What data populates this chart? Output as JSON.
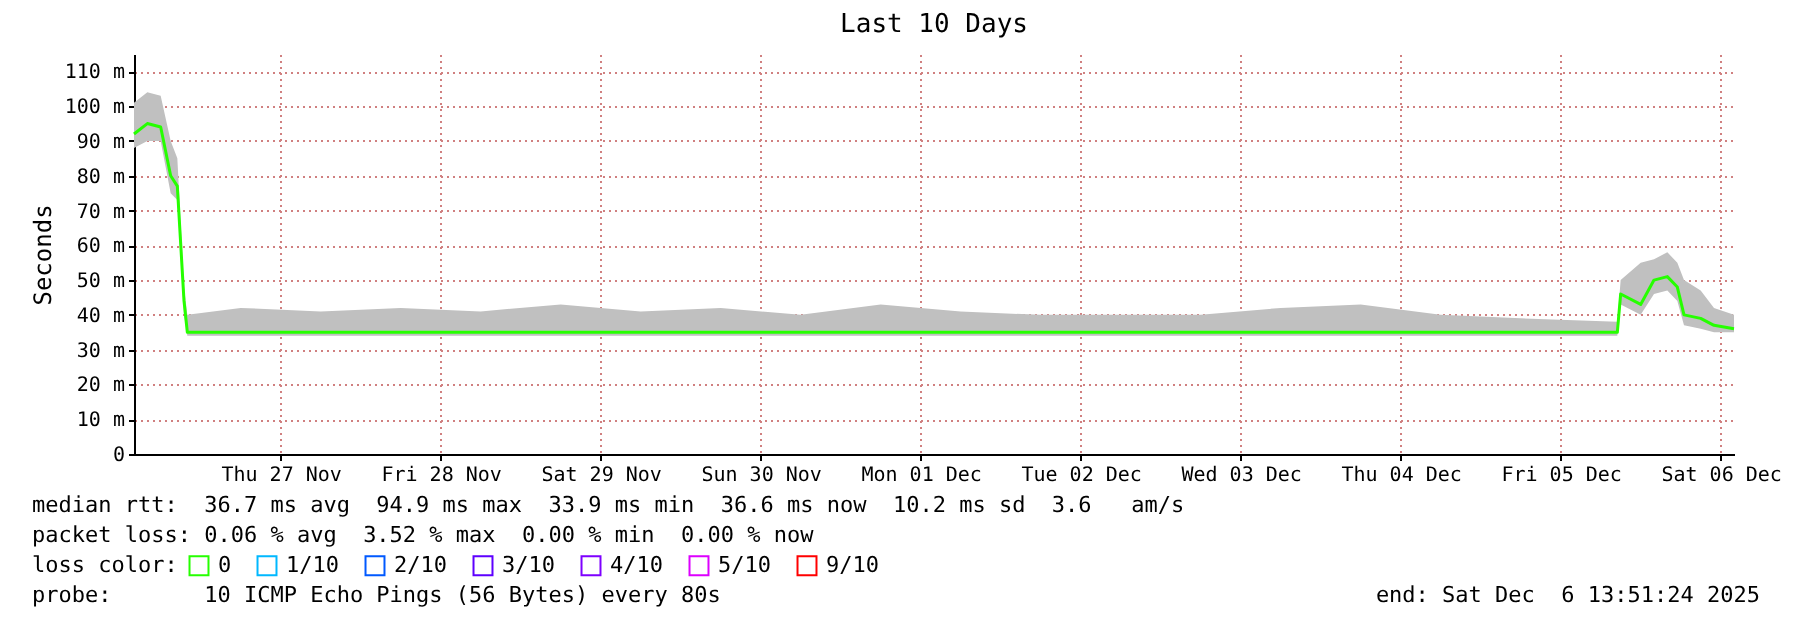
{
  "chart_data": {
    "type": "line",
    "title": "Last 10 Days",
    "ylabel": "Seconds",
    "legend_title": "loss color:",
    "x": [
      "2025-11-26T14:00",
      "2025-11-26T16:00",
      "2025-11-26T18:00",
      "2025-11-26T19:30",
      "2025-11-26T20:30",
      "2025-11-26T21:30",
      "2025-11-26T22:00",
      "2025-11-27T06:00",
      "2025-11-27T18:00",
      "2025-11-28T06:00",
      "2025-11-28T18:00",
      "2025-11-29T06:00",
      "2025-11-29T18:00",
      "2025-11-30T06:00",
      "2025-11-30T18:00",
      "2025-12-01T06:00",
      "2025-12-01T18:00",
      "2025-12-02T06:00",
      "2025-12-02T18:00",
      "2025-12-03T06:00",
      "2025-12-03T18:00",
      "2025-12-04T06:00",
      "2025-12-04T18:00",
      "2025-12-05T06:00",
      "2025-12-05T20:30",
      "2025-12-05T21:00",
      "2025-12-06T00:00",
      "2025-12-06T02:00",
      "2025-12-06T04:00",
      "2025-12-06T05:30",
      "2025-12-06T06:30",
      "2025-12-06T09:00",
      "2025-12-06T11:00",
      "2025-12-06T14:00"
    ],
    "series": [
      {
        "name": "0",
        "color": "#26ff00",
        "values": [
          92,
          95,
          94,
          80,
          77,
          44,
          35,
          35,
          35,
          35,
          35,
          35,
          35,
          35,
          35,
          35,
          35,
          35,
          35,
          35,
          35,
          35,
          35,
          35,
          35,
          46,
          43,
          50,
          51,
          48,
          40,
          39,
          37,
          36
        ],
        "lower": [
          88,
          90,
          90,
          75,
          73,
          40,
          34,
          34,
          34,
          34,
          34,
          34,
          34,
          34,
          34,
          34,
          34,
          34,
          34,
          34,
          34,
          34,
          34,
          34,
          34,
          43,
          40,
          46,
          47,
          44,
          37,
          36,
          35,
          35
        ],
        "upper": [
          101,
          104,
          103,
          90,
          85,
          48,
          40,
          42,
          41,
          42,
          41,
          43,
          41,
          42,
          40,
          43,
          41,
          40,
          40,
          40,
          42,
          43,
          40,
          39,
          38,
          50,
          55,
          56,
          58,
          55,
          50,
          47,
          42,
          40
        ]
      },
      {
        "name": "1/10",
        "color": "#00b8ff",
        "values": [
          null,
          null,
          null,
          null,
          null,
          null,
          null,
          null,
          null,
          null,
          null,
          null,
          null,
          null,
          null,
          null,
          null,
          null,
          null,
          null,
          null,
          null,
          null,
          null,
          null,
          null,
          null,
          null,
          null,
          null,
          null,
          null,
          null,
          null
        ]
      },
      {
        "name": "2/10",
        "color": "#0059ff",
        "values": [
          null,
          null,
          null,
          null,
          null,
          null,
          null,
          null,
          null,
          null,
          null,
          null,
          null,
          null,
          null,
          null,
          null,
          null,
          null,
          null,
          null,
          null,
          null,
          null,
          null,
          null,
          null,
          null,
          null,
          null,
          null,
          null,
          null,
          null
        ]
      },
      {
        "name": "3/10",
        "color": "#5e00ff",
        "values": [
          null,
          null,
          null,
          null,
          null,
          null,
          null,
          null,
          null,
          null,
          null,
          null,
          null,
          null,
          null,
          null,
          null,
          null,
          null,
          null,
          null,
          null,
          null,
          null,
          null,
          null,
          null,
          null,
          null,
          null,
          null,
          null,
          null,
          null
        ]
      },
      {
        "name": "4/10",
        "color": "#7e00ff",
        "values": [
          null,
          null,
          null,
          null,
          null,
          null,
          null,
          null,
          null,
          null,
          null,
          null,
          null,
          null,
          null,
          null,
          null,
          null,
          null,
          null,
          null,
          null,
          null,
          null,
          null,
          null,
          null,
          null,
          null,
          null,
          null,
          null,
          null,
          null
        ]
      },
      {
        "name": "5/10",
        "color": "#dd00ff",
        "values": [
          null,
          null,
          null,
          null,
          null,
          null,
          null,
          null,
          null,
          null,
          null,
          null,
          null,
          null,
          null,
          null,
          null,
          null,
          null,
          null,
          null,
          null,
          null,
          null,
          null,
          null,
          null,
          null,
          null,
          null,
          null,
          null,
          null,
          null
        ]
      },
      {
        "name": "9/10",
        "color": "#ff0000",
        "values": [
          null,
          null,
          null,
          null,
          null,
          null,
          null,
          null,
          null,
          null,
          null,
          null,
          null,
          null,
          null,
          null,
          null,
          null,
          null,
          null,
          null,
          null,
          null,
          null,
          null,
          null,
          null,
          null,
          null,
          null,
          null,
          null,
          null,
          null
        ]
      }
    ],
    "xlim": [
      "2025-11-26T14:00",
      "2025-12-06T14:00"
    ],
    "xticks": [
      {
        "value": "2025-11-27T12:00",
        "label": "Thu 27 Nov"
      },
      {
        "value": "2025-11-28T12:00",
        "label": "Fri 28 Nov"
      },
      {
        "value": "2025-11-29T12:00",
        "label": "Sat 29 Nov"
      },
      {
        "value": "2025-11-30T12:00",
        "label": "Sun 30 Nov"
      },
      {
        "value": "2025-12-01T12:00",
        "label": "Mon 01 Dec"
      },
      {
        "value": "2025-12-02T12:00",
        "label": "Tue 02 Dec"
      },
      {
        "value": "2025-12-03T12:00",
        "label": "Wed 03 Dec"
      },
      {
        "value": "2025-12-04T12:00",
        "label": "Thu 04 Dec"
      },
      {
        "value": "2025-12-05T12:00",
        "label": "Fri 05 Dec"
      },
      {
        "value": "2025-12-06T12:00",
        "label": "Sat 06 Dec"
      }
    ],
    "ylim": [
      0,
      115
    ],
    "yticks": [
      0,
      {
        "value": 10,
        "label": "10 m"
      },
      {
        "value": 20,
        "label": "20 m"
      },
      {
        "value": 30,
        "label": "30 m"
      },
      {
        "value": 40,
        "label": "40 m"
      },
      {
        "value": 50,
        "label": "50 m"
      },
      {
        "value": 60,
        "label": "60 m"
      },
      {
        "value": 70,
        "label": "70 m"
      },
      {
        "value": 80,
        "label": "80 m"
      },
      {
        "value": 90,
        "label": "90 m"
      },
      {
        "value": 100,
        "label": "100 m"
      },
      {
        "value": 110,
        "label": "110 m"
      }
    ],
    "grid": true,
    "legend": "bottom",
    "line_style": "solid",
    "marker": "none",
    "annotations": [
      "median rtt:  36.7 ms avg  94.9 ms max  33.9 ms min  36.6 ms now  10.2 ms sd  3.6   am/s",
      "packet loss: 0.06 % avg  3.52 % max  0.00 % min  0.00 % now",
      "probe:       10 ICMP Echo Pings (56 Bytes) every 80s",
      "end: Sat Dec  6 13:51:24 2025"
    ]
  }
}
